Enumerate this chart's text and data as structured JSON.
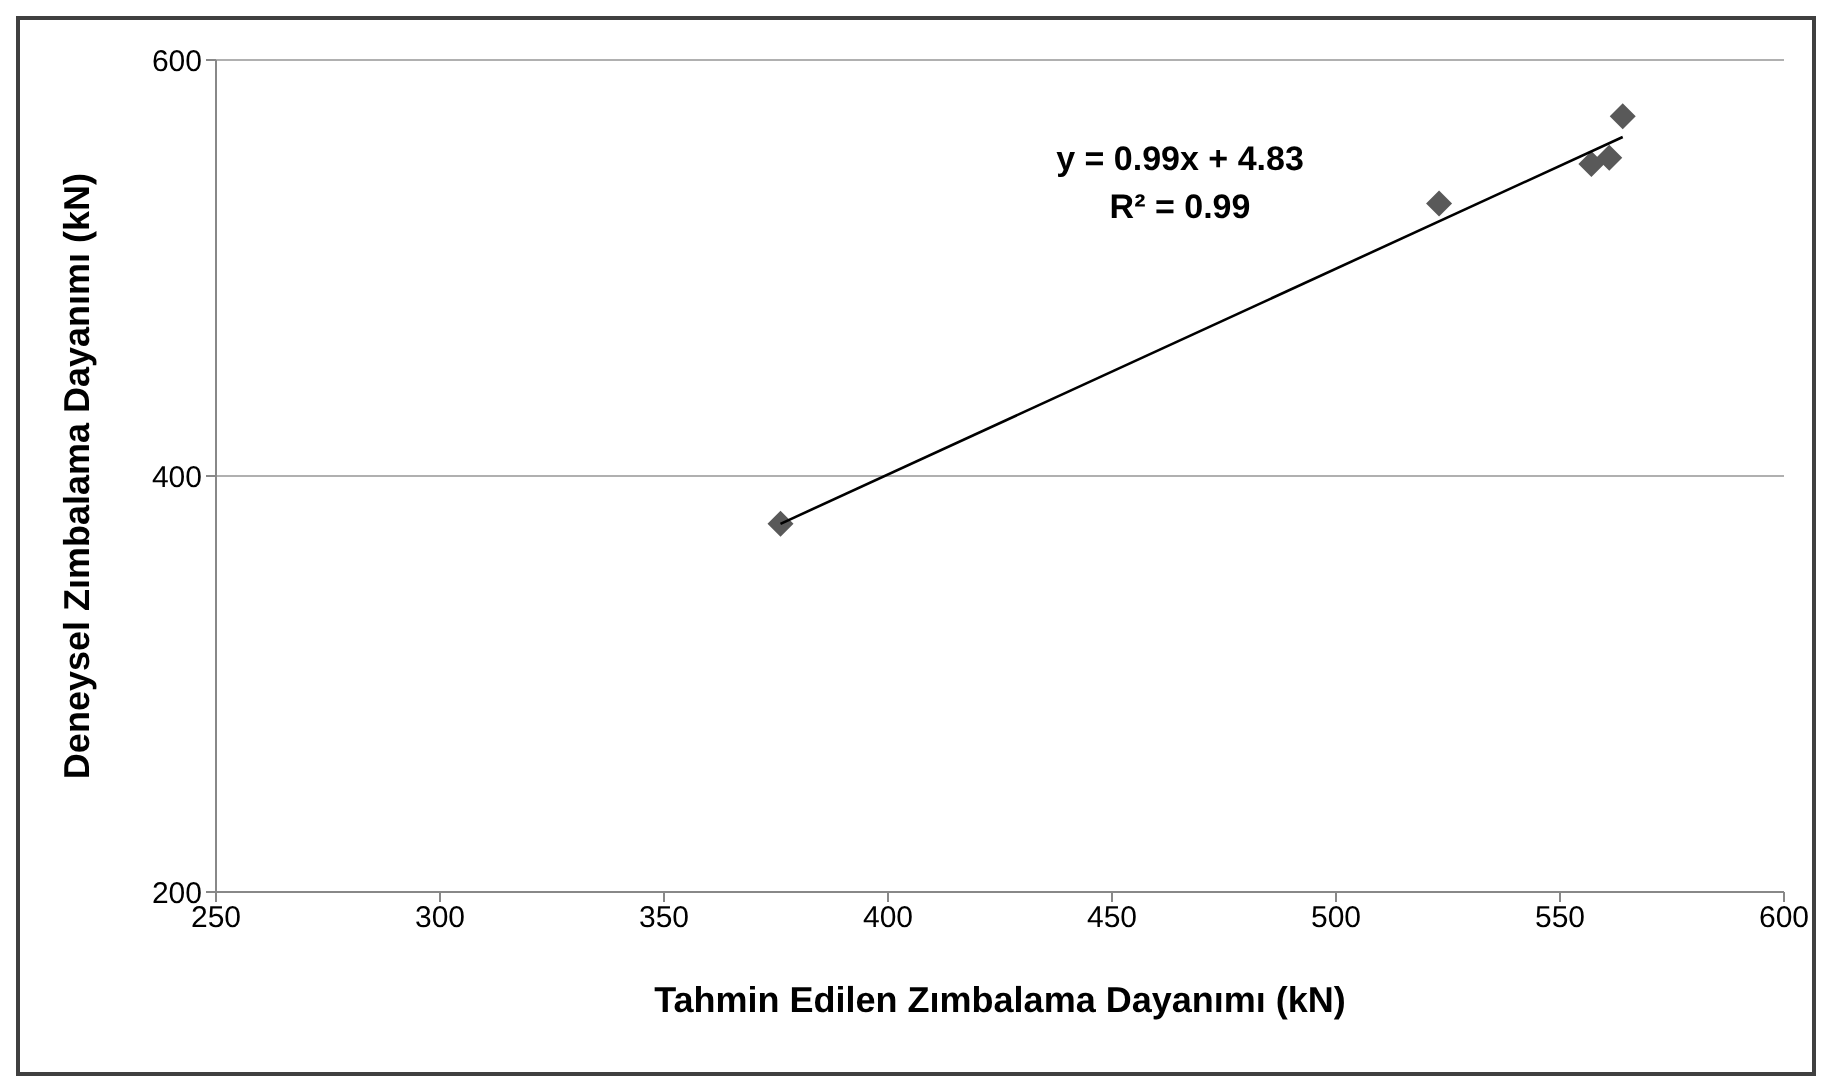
{
  "chart_data": {
    "type": "scatter",
    "xlabel": "Tahmin Edilen Zımbalama Dayanımı (kN)",
    "ylabel": "Deneysel Zımbalama Dayanımı (kN)",
    "series": [
      {
        "color": "#595959",
        "marker": "diamond",
        "x": [
          376,
          523,
          557,
          561,
          564
        ],
        "values": [
          377,
          531,
          550,
          553,
          573
        ]
      },
      {
        "type": "line",
        "color": "#000000",
        "marker": "none",
        "x": [
          376,
          564
        ],
        "values": [
          377,
          563
        ]
      }
    ],
    "xlim": [
      250,
      600
    ],
    "xticks": [
      250,
      300,
      350,
      400,
      450,
      500,
      550,
      600
    ],
    "ylim": [
      200,
      600
    ],
    "yticks": [
      200,
      400,
      600
    ],
    "grid": "y",
    "legend": false,
    "annotations": [
      "y = 0.99x + 4.83",
      "R² = 0.99"
    ]
  }
}
